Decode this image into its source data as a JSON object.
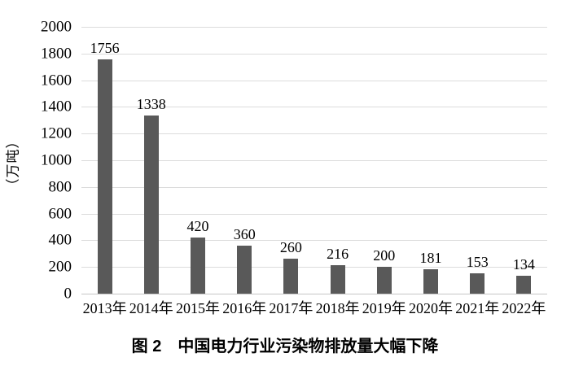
{
  "figure": {
    "caption": "图 2　中国电力行业污染物排放量大幅下降"
  },
  "chart_data": {
    "type": "bar",
    "categories": [
      "2013年",
      "2014年",
      "2015年",
      "2016年",
      "2017年",
      "2018年",
      "2019年",
      "2020年",
      "2021年",
      "2022年"
    ],
    "values": [
      1756,
      1338,
      420,
      360,
      260,
      216,
      200,
      181,
      153,
      134
    ],
    "title": "图 2　中国电力行业污染物排放量大幅下降",
    "xlabel": "",
    "ylabel": "（万吨）",
    "ylim": [
      0,
      2000
    ],
    "yticks": [
      0,
      200,
      400,
      600,
      800,
      1000,
      1200,
      1400,
      1600,
      1800,
      2000
    ],
    "grid": true,
    "legend": "none",
    "bar_color": "#595959",
    "gridline_color": "#dcdcdc",
    "axisline_color": "#c6c6c6",
    "text_color": "#000000"
  }
}
